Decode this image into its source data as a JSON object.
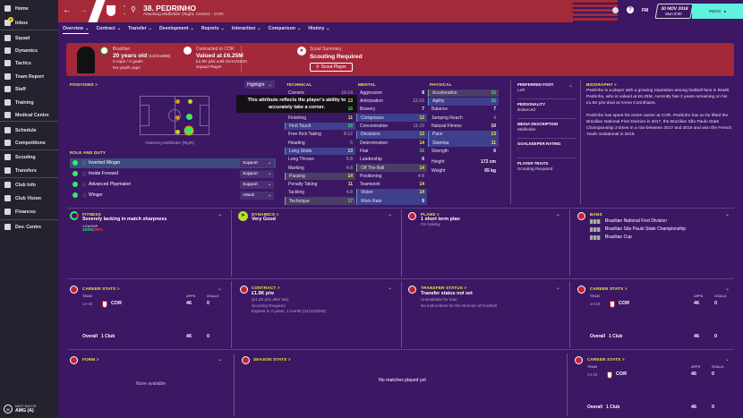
{
  "sidebar": {
    "items": [
      {
        "label": "Home"
      },
      {
        "label": "Inbox",
        "badge": "6"
      },
      {
        "label": "Squad"
      },
      {
        "label": "Dynamics"
      },
      {
        "label": "Tactics"
      },
      {
        "label": "Team Report"
      },
      {
        "label": "Staff"
      },
      {
        "label": "Training"
      },
      {
        "label": "Medical Centre"
      },
      {
        "label": "Schedule"
      },
      {
        "label": "Competitions"
      },
      {
        "label": "Scouting"
      },
      {
        "label": "Transfers"
      },
      {
        "label": "Club Info"
      },
      {
        "label": "Club Vision"
      },
      {
        "label": "Finances"
      },
      {
        "label": "Dev. Centre"
      }
    ],
    "next_match": {
      "label": "NEXT MATCH",
      "value": "AMG (A)",
      "days": "30"
    }
  },
  "header": {
    "title": "38. PEDRINHO",
    "subtitle": "Attacking Midfielder (Right, Centre) - COR",
    "date": "30 NOV 2018",
    "time": "Mon 9:00",
    "inbox_label": "INBOX",
    "fm_label": "FM"
  },
  "tabs": [
    {
      "label": "Overview"
    },
    {
      "label": "Contract"
    },
    {
      "label": "Transfer"
    },
    {
      "label": "Development"
    },
    {
      "label": "Reports"
    },
    {
      "label": "Interaction"
    },
    {
      "label": "Comparison"
    },
    {
      "label": "History"
    }
  ],
  "banner": {
    "nationality": "Brazilian",
    "age": "20 years old",
    "dob": "(13/4/1998)",
    "caps": "0 caps / 0 goals",
    "youth_caps": "No youth caps",
    "contract_title": "Contracted to COR",
    "value": "Valued at £6.25M",
    "wage": "£1.9K p/w until 31/12/2020",
    "squad_status": "Squad Player",
    "scout_title": "Scout Summary",
    "scout_status": "Scouting Required",
    "scout_button": "Scout Player"
  },
  "positions": {
    "title": "POSITIONS",
    "highlight": "Highlight",
    "position_label": "Attacking Midfielder (Right)",
    "role_title": "ROLE AND DUTY",
    "roles": [
      {
        "name": "Inverted Winger",
        "duty": "Support"
      },
      {
        "name": "Inside Forward",
        "duty": "Support"
      },
      {
        "name": "Advanced Playmaker",
        "duty": "Support"
      },
      {
        "name": "Winger",
        "duty": "Attack"
      }
    ]
  },
  "tooltip": "This attribute reflects the player's ability to accurately take a corner.",
  "attributes": {
    "technical": {
      "title": "TECHNICAL",
      "rows": [
        {
          "name": "Corners",
          "value": "10-14"
        },
        {
          "name": "",
          "value": "13"
        },
        {
          "name": "",
          "value": "16"
        },
        {
          "name": "Finishing",
          "value": "11"
        },
        {
          "name": "First Touch",
          "value": "16",
          "hl": "hl"
        },
        {
          "name": "Free Kick Taking",
          "value": "8-12"
        },
        {
          "name": "Heading",
          "value": "5"
        },
        {
          "name": "Long Shots",
          "value": "13",
          "hl": "hl"
        },
        {
          "name": "Long Throws",
          "value": "5-8"
        },
        {
          "name": "Marking",
          "value": "4-8"
        },
        {
          "name": "Passing",
          "value": "14",
          "hl": "gr"
        },
        {
          "name": "Penalty Taking",
          "value": "11"
        },
        {
          "name": "Tackling",
          "value": "4-8"
        },
        {
          "name": "Technique",
          "value": "17",
          "hl": "gr"
        }
      ]
    },
    "mental": {
      "title": "MENTAL",
      "rows": [
        {
          "name": "Aggression",
          "value": "8"
        },
        {
          "name": "Anticipation",
          "value": "12-15"
        },
        {
          "name": "Bravery",
          "value": "7"
        },
        {
          "name": "Composure",
          "value": "12",
          "hl": "hl"
        },
        {
          "name": "Concentration",
          "value": "11-15"
        },
        {
          "name": "Decisions",
          "value": "13",
          "hl": "hl"
        },
        {
          "name": "Determination",
          "value": "14"
        },
        {
          "name": "Flair",
          "value": "16"
        },
        {
          "name": "Leadership",
          "value": "6"
        },
        {
          "name": "Off The Ball",
          "value": "14",
          "hl": "gr"
        },
        {
          "name": "Positioning",
          "value": "4-8"
        },
        {
          "name": "Teamwork",
          "value": "14"
        },
        {
          "name": "Vision",
          "value": "14",
          "hl": "hl"
        },
        {
          "name": "Work Rate",
          "value": "9",
          "hl": "hl"
        }
      ]
    },
    "physical": {
      "title": "PHYSICAL",
      "rows": [
        {
          "name": "Acceleration",
          "value": "15",
          "hl": "gr"
        },
        {
          "name": "Agility",
          "value": "16",
          "hl": "hl"
        },
        {
          "name": "Balance",
          "value": "7"
        },
        {
          "name": "Jumping Reach",
          "value": "4"
        },
        {
          "name": "Natural Fitness",
          "value": "10"
        },
        {
          "name": "Pace",
          "value": "13",
          "hl": "hl"
        },
        {
          "name": "Stamina",
          "value": "11",
          "hl": "hl"
        },
        {
          "name": "Strength",
          "value": "6"
        },
        {
          "name": "Height",
          "value": "172 cm"
        },
        {
          "name": "Weight",
          "value": "65 kg"
        }
      ]
    }
  },
  "info": [
    {
      "label": "PREFERRED FOOT",
      "value": "Left"
    },
    {
      "label": "PERSONALITY",
      "value": "Balanced"
    },
    {
      "label": "MEDIA DESCRIPTION",
      "value": "Midfielder"
    },
    {
      "label": "GOALKEEPER RATING",
      "value": "-"
    },
    {
      "label": "PLAYER TRAITS",
      "value": "Scouting Required"
    }
  ],
  "biography": {
    "title": "BIOGRAPHY",
    "p1": "Pedrinho is a player with a growing reputation among football fans in Brazil. Pedrinho, who is valued at £6.25M, currently has 2 years remaining on his £1.9K p/w deal at Arena Corinthians.",
    "p2": "Pedrinho has spent his entire career at COR. Pedrinho has so far lifted the Brazilian National First Division in 2017, the Brazilian São Paulo State Championship 3 times in a row between 2017 and 2019 and won the French Youth Invitational in 2019."
  },
  "fitness": {
    "title": "FITNESS",
    "status": "Severely lacking in match sharpness",
    "label": "CON/SHP",
    "condition": "100%",
    "sharpness": "/35%"
  },
  "dynamics": {
    "title": "DYNAMICS",
    "value": "Very Good"
  },
  "plans": {
    "title": "PLANS",
    "value": "1 short term plan",
    "sub": "On holiday"
  },
  "bans": {
    "title": "BANS",
    "items": [
      "Brazilian National First Division",
      "Brazilian São Paulo State Championship",
      "Brazilian Cup"
    ]
  },
  "career": {
    "title": "CAREER STATS",
    "team_h": "TEAM",
    "apps_h": "APPS",
    "goals_h": "GOALS",
    "season": "14-19",
    "team": "COR",
    "apps": "46",
    "goals": "0",
    "overall": "Overall",
    "clubs": "1 Club"
  },
  "contract": {
    "title": "CONTRACT",
    "wage": "£1.9K p/w",
    "after_tax": "(£1.2K p/w after tax)",
    "status": "Scouting Required",
    "expires": "Expires in 2 years, 1 month (31/12/2020)"
  },
  "transfer": {
    "title": "TRANSFER STATUS",
    "value": "Transfer status not set",
    "loan": "Unavailable for loan",
    "dof": "No instructions for the Director of Football"
  },
  "form": {
    "title": "FORM",
    "empty": "None available"
  },
  "season": {
    "title": "SEASON STATS",
    "empty": "No matches played yet"
  },
  "colors": {
    "accent_red": "#a3283a",
    "bg_purple": "#3b1764",
    "sidebar": "#23222e",
    "highlight_yellow": "#e9f23a",
    "good_green": "#2ff064",
    "inbox_cyan": "#5ff2e0"
  }
}
